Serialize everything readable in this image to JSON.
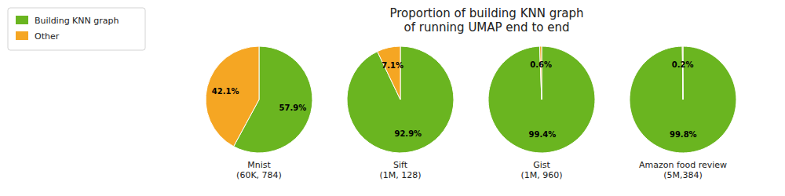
{
  "chart_data": {
    "type": "pie",
    "title": "Proportion of building KNN graph\nof running UMAP end to end",
    "categories": [
      "Building KNN graph",
      "Other"
    ],
    "colors": [
      "#6ab520",
      "#f5a623"
    ],
    "series": [
      {
        "name": "Mnist\n(60K, 784)",
        "values": [
          57.9,
          42.1
        ],
        "value_labels": [
          "57.9%",
          "42.1%"
        ]
      },
      {
        "name": "Sift\n(1M, 128)",
        "values": [
          92.9,
          7.1
        ],
        "value_labels": [
          "92.9%",
          "7.1%"
        ]
      },
      {
        "name": "Gist\n(1M, 960)",
        "values": [
          99.4,
          0.6
        ],
        "value_labels": [
          "99.4%",
          "0.6%"
        ]
      },
      {
        "name": "Amazon food review\n(5M,384)",
        "values": [
          99.8,
          0.2
        ],
        "value_labels": [
          "99.8%",
          "0.2%"
        ]
      }
    ],
    "data_labels": true,
    "legend": "upper-left"
  }
}
